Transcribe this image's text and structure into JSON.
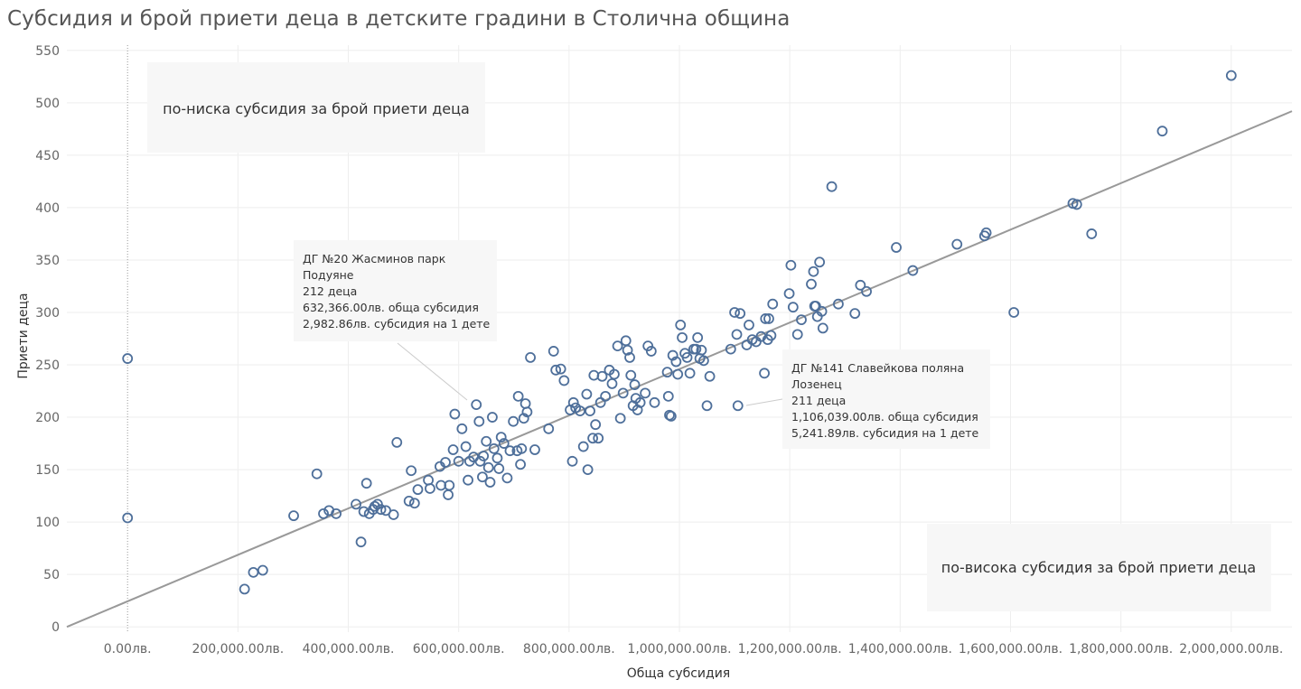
{
  "chart_data": {
    "type": "scatter",
    "title": "Субсидия и брой приети деца в детските градини в Столична община",
    "xlabel": "Обща субсидия",
    "ylabel": "Приети деца",
    "xlim": [
      -110000,
      2110000
    ],
    "ylim": [
      -5,
      555
    ],
    "x_ticks": [
      0,
      200000,
      400000,
      600000,
      800000,
      1000000,
      1200000,
      1400000,
      1600000,
      1800000,
      2000000
    ],
    "x_tick_labels": [
      "0.00лв.",
      "200,000.00лв.",
      "400,000.00лв.",
      "600,000.00лв.",
      "800,000.00лв.",
      "1,000,000.00лв.",
      "1,200,000.00лв.",
      "1,400,000.00лв.",
      "1,600,000.00лв.",
      "1,800,000.00лв.",
      "2,000,000.00лв."
    ],
    "y_ticks": [
      0,
      50,
      100,
      150,
      200,
      250,
      300,
      350,
      400,
      450,
      500,
      550
    ],
    "y_tick_labels": [
      "0",
      "50",
      "100",
      "150",
      "200",
      "250",
      "300",
      "350",
      "400",
      "450",
      "500",
      "550"
    ],
    "grid": true,
    "marker_color": "#4e6f9a",
    "trend_color": "#999999",
    "trend_line": [
      [
        -110000,
        0
      ],
      [
        2110000,
        492
      ]
    ],
    "zero_reference_line": "x=0",
    "series": [
      {
        "points": [
          [
            0,
            256
          ],
          [
            0,
            104
          ],
          [
            212000,
            36
          ],
          [
            228000,
            52
          ],
          [
            245000,
            54
          ],
          [
            301000,
            106
          ],
          [
            343000,
            146
          ],
          [
            355000,
            108
          ],
          [
            365000,
            111
          ],
          [
            378000,
            108
          ],
          [
            414000,
            117
          ],
          [
            423000,
            81
          ],
          [
            428000,
            110
          ],
          [
            433000,
            137
          ],
          [
            438000,
            108
          ],
          [
            445000,
            112
          ],
          [
            448000,
            115
          ],
          [
            453000,
            117
          ],
          [
            459000,
            112
          ],
          [
            468000,
            111
          ],
          [
            482000,
            107
          ],
          [
            488000,
            176
          ],
          [
            510000,
            120
          ],
          [
            514000,
            149
          ],
          [
            520000,
            118
          ],
          [
            526000,
            131
          ],
          [
            545000,
            140
          ],
          [
            548000,
            132
          ],
          [
            566000,
            153
          ],
          [
            568000,
            135
          ],
          [
            576000,
            157
          ],
          [
            581000,
            126
          ],
          [
            583000,
            135
          ],
          [
            590000,
            169
          ],
          [
            593000,
            203
          ],
          [
            600000,
            158
          ],
          [
            606000,
            189
          ],
          [
            613000,
            172
          ],
          [
            617000,
            140
          ],
          [
            620000,
            158
          ],
          [
            627000,
            162
          ],
          [
            632000,
            212
          ],
          [
            637000,
            196
          ],
          [
            639000,
            158
          ],
          [
            643000,
            143
          ],
          [
            645000,
            163
          ],
          [
            650000,
            177
          ],
          [
            654000,
            152
          ],
          [
            657000,
            138
          ],
          [
            661000,
            200
          ],
          [
            664000,
            170
          ],
          [
            670000,
            161
          ],
          [
            673000,
            151
          ],
          [
            677000,
            181
          ],
          [
            682000,
            175
          ],
          [
            688000,
            142
          ],
          [
            693000,
            168
          ],
          [
            699000,
            196
          ],
          [
            706000,
            168
          ],
          [
            708000,
            220
          ],
          [
            712000,
            155
          ],
          [
            714000,
            170
          ],
          [
            718000,
            199
          ],
          [
            721000,
            213
          ],
          [
            724000,
            205
          ],
          [
            730000,
            257
          ],
          [
            738000,
            169
          ],
          [
            763000,
            189
          ],
          [
            772000,
            263
          ],
          [
            776000,
            245
          ],
          [
            785000,
            246
          ],
          [
            791000,
            235
          ],
          [
            802000,
            207
          ],
          [
            806000,
            158
          ],
          [
            808000,
            214
          ],
          [
            812000,
            209
          ],
          [
            820000,
            206
          ],
          [
            826000,
            172
          ],
          [
            832000,
            222
          ],
          [
            834000,
            150
          ],
          [
            838000,
            206
          ],
          [
            843000,
            180
          ],
          [
            845000,
            240
          ],
          [
            848000,
            193
          ],
          [
            853000,
            180
          ],
          [
            857000,
            214
          ],
          [
            860000,
            239
          ],
          [
            866000,
            220
          ],
          [
            873000,
            245
          ],
          [
            878000,
            232
          ],
          [
            882000,
            241
          ],
          [
            888000,
            268
          ],
          [
            893000,
            199
          ],
          [
            898000,
            223
          ],
          [
            903000,
            273
          ],
          [
            906000,
            264
          ],
          [
            910000,
            257
          ],
          [
            912000,
            240
          ],
          [
            916000,
            211
          ],
          [
            919000,
            231
          ],
          [
            921000,
            218
          ],
          [
            924000,
            207
          ],
          [
            929000,
            214
          ],
          [
            938000,
            223
          ],
          [
            943000,
            268
          ],
          [
            949000,
            263
          ],
          [
            955000,
            214
          ],
          [
            978000,
            243
          ],
          [
            980000,
            220
          ],
          [
            982000,
            202
          ],
          [
            985000,
            201
          ],
          [
            988000,
            259
          ],
          [
            994000,
            253
          ],
          [
            997000,
            241
          ],
          [
            1002000,
            288
          ],
          [
            1005000,
            276
          ],
          [
            1010000,
            261
          ],
          [
            1014000,
            257
          ],
          [
            1019000,
            242
          ],
          [
            1026000,
            265
          ],
          [
            1030000,
            265
          ],
          [
            1033000,
            276
          ],
          [
            1037000,
            256
          ],
          [
            1040000,
            264
          ],
          [
            1044000,
            254
          ],
          [
            1050000,
            211
          ],
          [
            1055000,
            239
          ],
          [
            1093000,
            265
          ],
          [
            1100000,
            300
          ],
          [
            1104000,
            279
          ],
          [
            1106000,
            211
          ],
          [
            1110000,
            299
          ],
          [
            1122000,
            269
          ],
          [
            1126000,
            288
          ],
          [
            1132000,
            274
          ],
          [
            1139000,
            272
          ],
          [
            1148000,
            277
          ],
          [
            1154000,
            242
          ],
          [
            1156000,
            294
          ],
          [
            1160000,
            274
          ],
          [
            1162000,
            294
          ],
          [
            1166000,
            278
          ],
          [
            1169000,
            308
          ],
          [
            1199000,
            318
          ],
          [
            1202000,
            345
          ],
          [
            1206000,
            305
          ],
          [
            1214000,
            279
          ],
          [
            1221000,
            293
          ],
          [
            1239000,
            327
          ],
          [
            1243000,
            339
          ],
          [
            1245000,
            306
          ],
          [
            1247000,
            306
          ],
          [
            1250000,
            296
          ],
          [
            1254000,
            348
          ],
          [
            1258000,
            301
          ],
          [
            1260000,
            285
          ],
          [
            1276000,
            420
          ],
          [
            1288000,
            308
          ],
          [
            1318000,
            299
          ],
          [
            1328000,
            326
          ],
          [
            1339000,
            320
          ],
          [
            1393000,
            362
          ],
          [
            1423000,
            340
          ],
          [
            1503000,
            365
          ],
          [
            1553000,
            373
          ],
          [
            1556000,
            376
          ],
          [
            1606000,
            300
          ],
          [
            1713000,
            404
          ],
          [
            1720000,
            403
          ],
          [
            1747000,
            375
          ],
          [
            1875000,
            473
          ],
          [
            2000000,
            526
          ]
        ]
      }
    ],
    "annotations": [
      {
        "text": "по-ниска субсидия за брой приети деца"
      },
      {
        "text": "по-висока субсидия за брой приети деца"
      }
    ],
    "tooltips": [
      {
        "lines": [
          "ДГ №20 Жасминов парк",
          "Подуяне",
          "212 деца",
          "632,366.00лв. обща субсидия",
          "2,982.86лв. субсидия на 1 дете"
        ],
        "point": [
          632366,
          212
        ]
      },
      {
        "lines": [
          "ДГ №141 Славейкова поляна",
          "Лозенец",
          "211 деца",
          "1,106,039.00лв. обща субсидия",
          "5,241.89лв. субсидия на 1 дете"
        ],
        "point": [
          1106039,
          211
        ]
      }
    ]
  }
}
